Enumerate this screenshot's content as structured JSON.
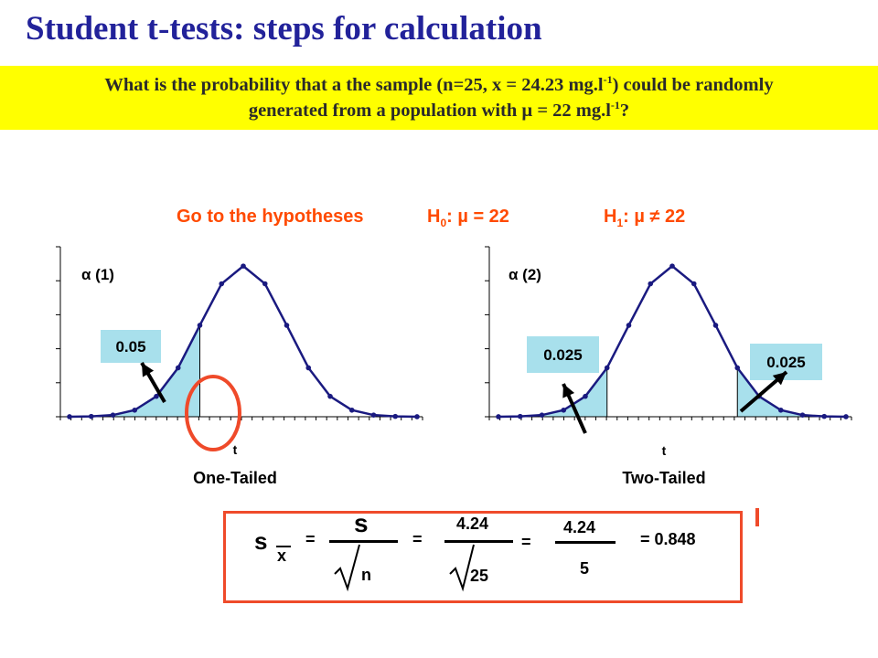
{
  "title": "Student t-tests: steps for calculation",
  "question": {
    "line1_a": "What is the probability that a the sample (n=25, x = 24.23 mg.l",
    "sup": "-1",
    "line1_b": ") could be randomly",
    "line2_a": "generated from a population with µ = 22 mg.l",
    "line2_b": "?"
  },
  "hypotheses": {
    "goto": "Go to the hypotheses",
    "h0_prefix": "H",
    "h0_sub": "0",
    "h0_rest": ": µ = 22",
    "h1_prefix": "H",
    "h1_sub": "1",
    "h1_rest": ": µ ≠ 22"
  },
  "chart_data": [
    {
      "type": "line",
      "alpha_label": "α (1)",
      "xlabel": "t",
      "caption": "One-Tailed",
      "annotations": [
        "0.05"
      ],
      "x": [
        -4.0,
        -3.5,
        -3.0,
        -2.5,
        -2.0,
        -1.5,
        -1.0,
        -0.5,
        0.0,
        0.5,
        1.0,
        1.5,
        2.0,
        2.5,
        3.0,
        3.5,
        4.0
      ],
      "y": [
        0.0001,
        0.0009,
        0.0044,
        0.0175,
        0.054,
        0.1295,
        0.242,
        0.352,
        0.3989,
        0.352,
        0.242,
        0.1295,
        0.054,
        0.0175,
        0.0044,
        0.0009,
        0.0001
      ],
      "ylim": [
        0,
        0.45
      ],
      "shaded": "left tail"
    },
    {
      "type": "line",
      "alpha_label": "α (2)",
      "xlabel": "t",
      "caption": "Two-Tailed",
      "annotations": [
        "0.025",
        "0.025"
      ],
      "x": [
        -4.0,
        -3.5,
        -3.0,
        -2.5,
        -2.0,
        -1.5,
        -1.0,
        -0.5,
        0.0,
        0.5,
        1.0,
        1.5,
        2.0,
        2.5,
        3.0,
        3.5,
        4.0
      ],
      "y": [
        0.0001,
        0.0009,
        0.0044,
        0.0175,
        0.054,
        0.1295,
        0.242,
        0.352,
        0.3989,
        0.352,
        0.242,
        0.1295,
        0.054,
        0.0175,
        0.0044,
        0.0009,
        0.0001
      ],
      "ylim": [
        0,
        0.45
      ],
      "shaded": "both tails"
    }
  ],
  "formula": {
    "s_left": "s",
    "x_sub": "x",
    "eq1": "=",
    "s_num": "s",
    "n_den": "n",
    "eq2": "=",
    "num2": "4.24",
    "den2": "25",
    "eq3": "=",
    "num3": "4.24",
    "den3": "5",
    "result": "= 0.848"
  },
  "colors": {
    "title": "#22229a",
    "highlight": "#ffff00",
    "hypothesis": "#ff4a00",
    "curve": "#1a1a80",
    "shade": "#a8e0ec",
    "label_box": "#a8e0ec",
    "marker_circle": "#ef4a2a",
    "formula_border": "#ef4a2a"
  }
}
